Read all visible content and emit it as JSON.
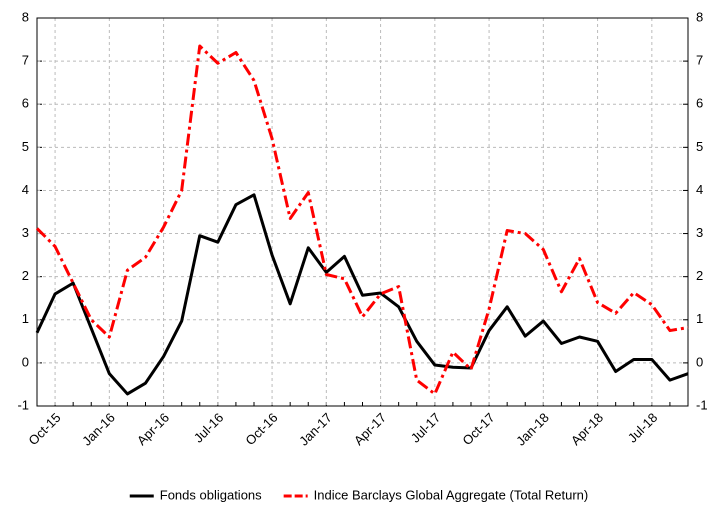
{
  "chart_data": {
    "type": "line",
    "categories": [
      null,
      "Oct-15",
      null,
      null,
      "Jan-16",
      null,
      null,
      "Apr-16",
      null,
      null,
      "Jul-16",
      null,
      null,
      "Oct-16",
      null,
      null,
      "Jan-17",
      null,
      null,
      "Apr-17",
      null,
      null,
      "Jul-17",
      null,
      null,
      "Oct-17",
      null,
      null,
      "Jan-18",
      null,
      null,
      "Apr-18",
      null,
      null,
      "Jul-18",
      null,
      null
    ],
    "series": [
      {
        "name": "Fonds obligations",
        "color": "#000000",
        "dash": "solid",
        "values": [
          0.7,
          1.6,
          1.85,
          0.8,
          -0.25,
          -0.72,
          -0.47,
          0.15,
          0.97,
          2.95,
          2.8,
          3.67,
          3.9,
          2.5,
          1.37,
          2.67,
          2.1,
          2.47,
          1.57,
          1.62,
          1.3,
          0.5,
          -0.05,
          -0.1,
          -0.12,
          0.75,
          1.3,
          0.62,
          0.97,
          0.45,
          0.6,
          0.5,
          -0.2,
          0.08,
          0.08,
          -0.4,
          -0.25
        ]
      },
      {
        "name": "Indice Barclays Global Aggregate (Total Return)",
        "color": "#ff0000",
        "dash": "dashdot",
        "values": [
          3.12,
          2.7,
          1.85,
          1.0,
          0.6,
          2.15,
          2.45,
          3.15,
          4.0,
          7.35,
          6.95,
          7.2,
          6.55,
          5.2,
          3.35,
          3.95,
          2.05,
          1.95,
          1.07,
          1.6,
          1.77,
          -0.4,
          -0.72,
          0.25,
          -0.15,
          1.25,
          3.07,
          3.0,
          2.63,
          1.65,
          2.42,
          1.4,
          1.15,
          1.63,
          1.35,
          0.75,
          0.82
        ]
      }
    ],
    "ylim": [
      -1,
      8
    ],
    "yticks": [
      -1,
      0,
      1,
      2,
      3,
      4,
      5,
      6,
      7,
      8
    ],
    "y2lim": [
      -1,
      8
    ],
    "y2ticks": [
      -1,
      0,
      1,
      2,
      3,
      4,
      5,
      6,
      7,
      8
    ],
    "grid": true,
    "legend": "bottom"
  }
}
